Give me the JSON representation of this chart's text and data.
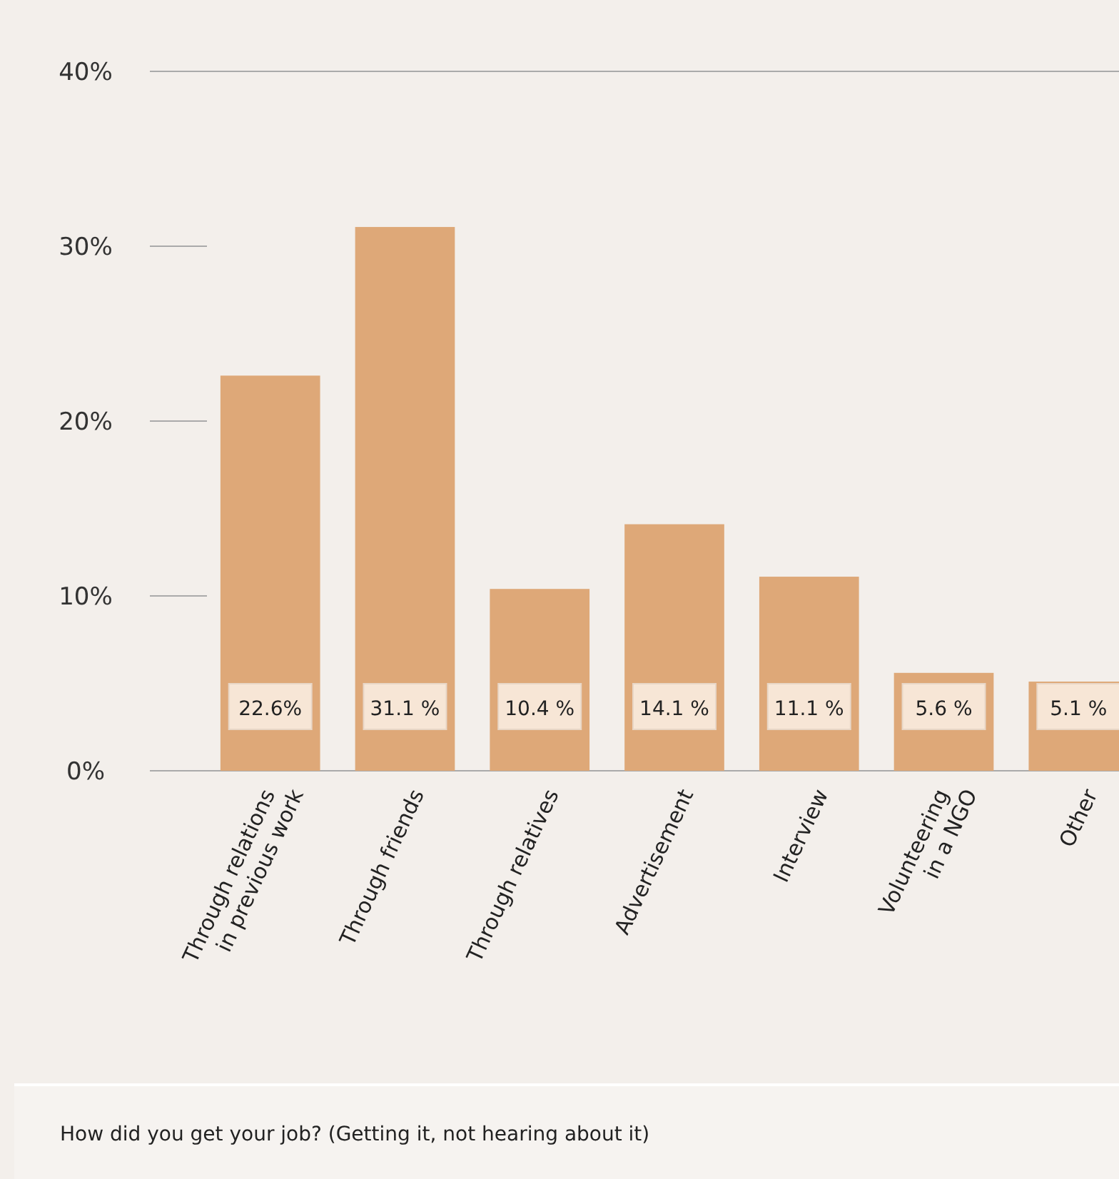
{
  "chart_data": {
    "type": "bar",
    "title": "How did you get your job? (Getting it, not hearing about it)",
    "categories": [
      "Through relations\nin previous work",
      "Through friends",
      "Through relatives",
      "Advertisement",
      "Interview",
      "Volunteering\nin a NGO",
      "Other"
    ],
    "values": [
      22.6,
      31.1,
      10.4,
      14.1,
      11.1,
      5.6,
      5.1
    ],
    "value_labels": [
      "22.6%",
      "31.1 %",
      "10.4 %",
      "14.1 %",
      "11.1 %",
      "5.6 %",
      "5.1 %"
    ],
    "color": "#dea878",
    "ylim": [
      0,
      40
    ],
    "yticks": [
      {
        "value": 0,
        "label": "0%"
      },
      {
        "value": 10,
        "label": "10%"
      },
      {
        "value": 20,
        "label": "20%"
      },
      {
        "value": 30,
        "label": "30%"
      },
      {
        "value": 40,
        "label": "40%"
      }
    ],
    "grid": false,
    "legend": false
  }
}
